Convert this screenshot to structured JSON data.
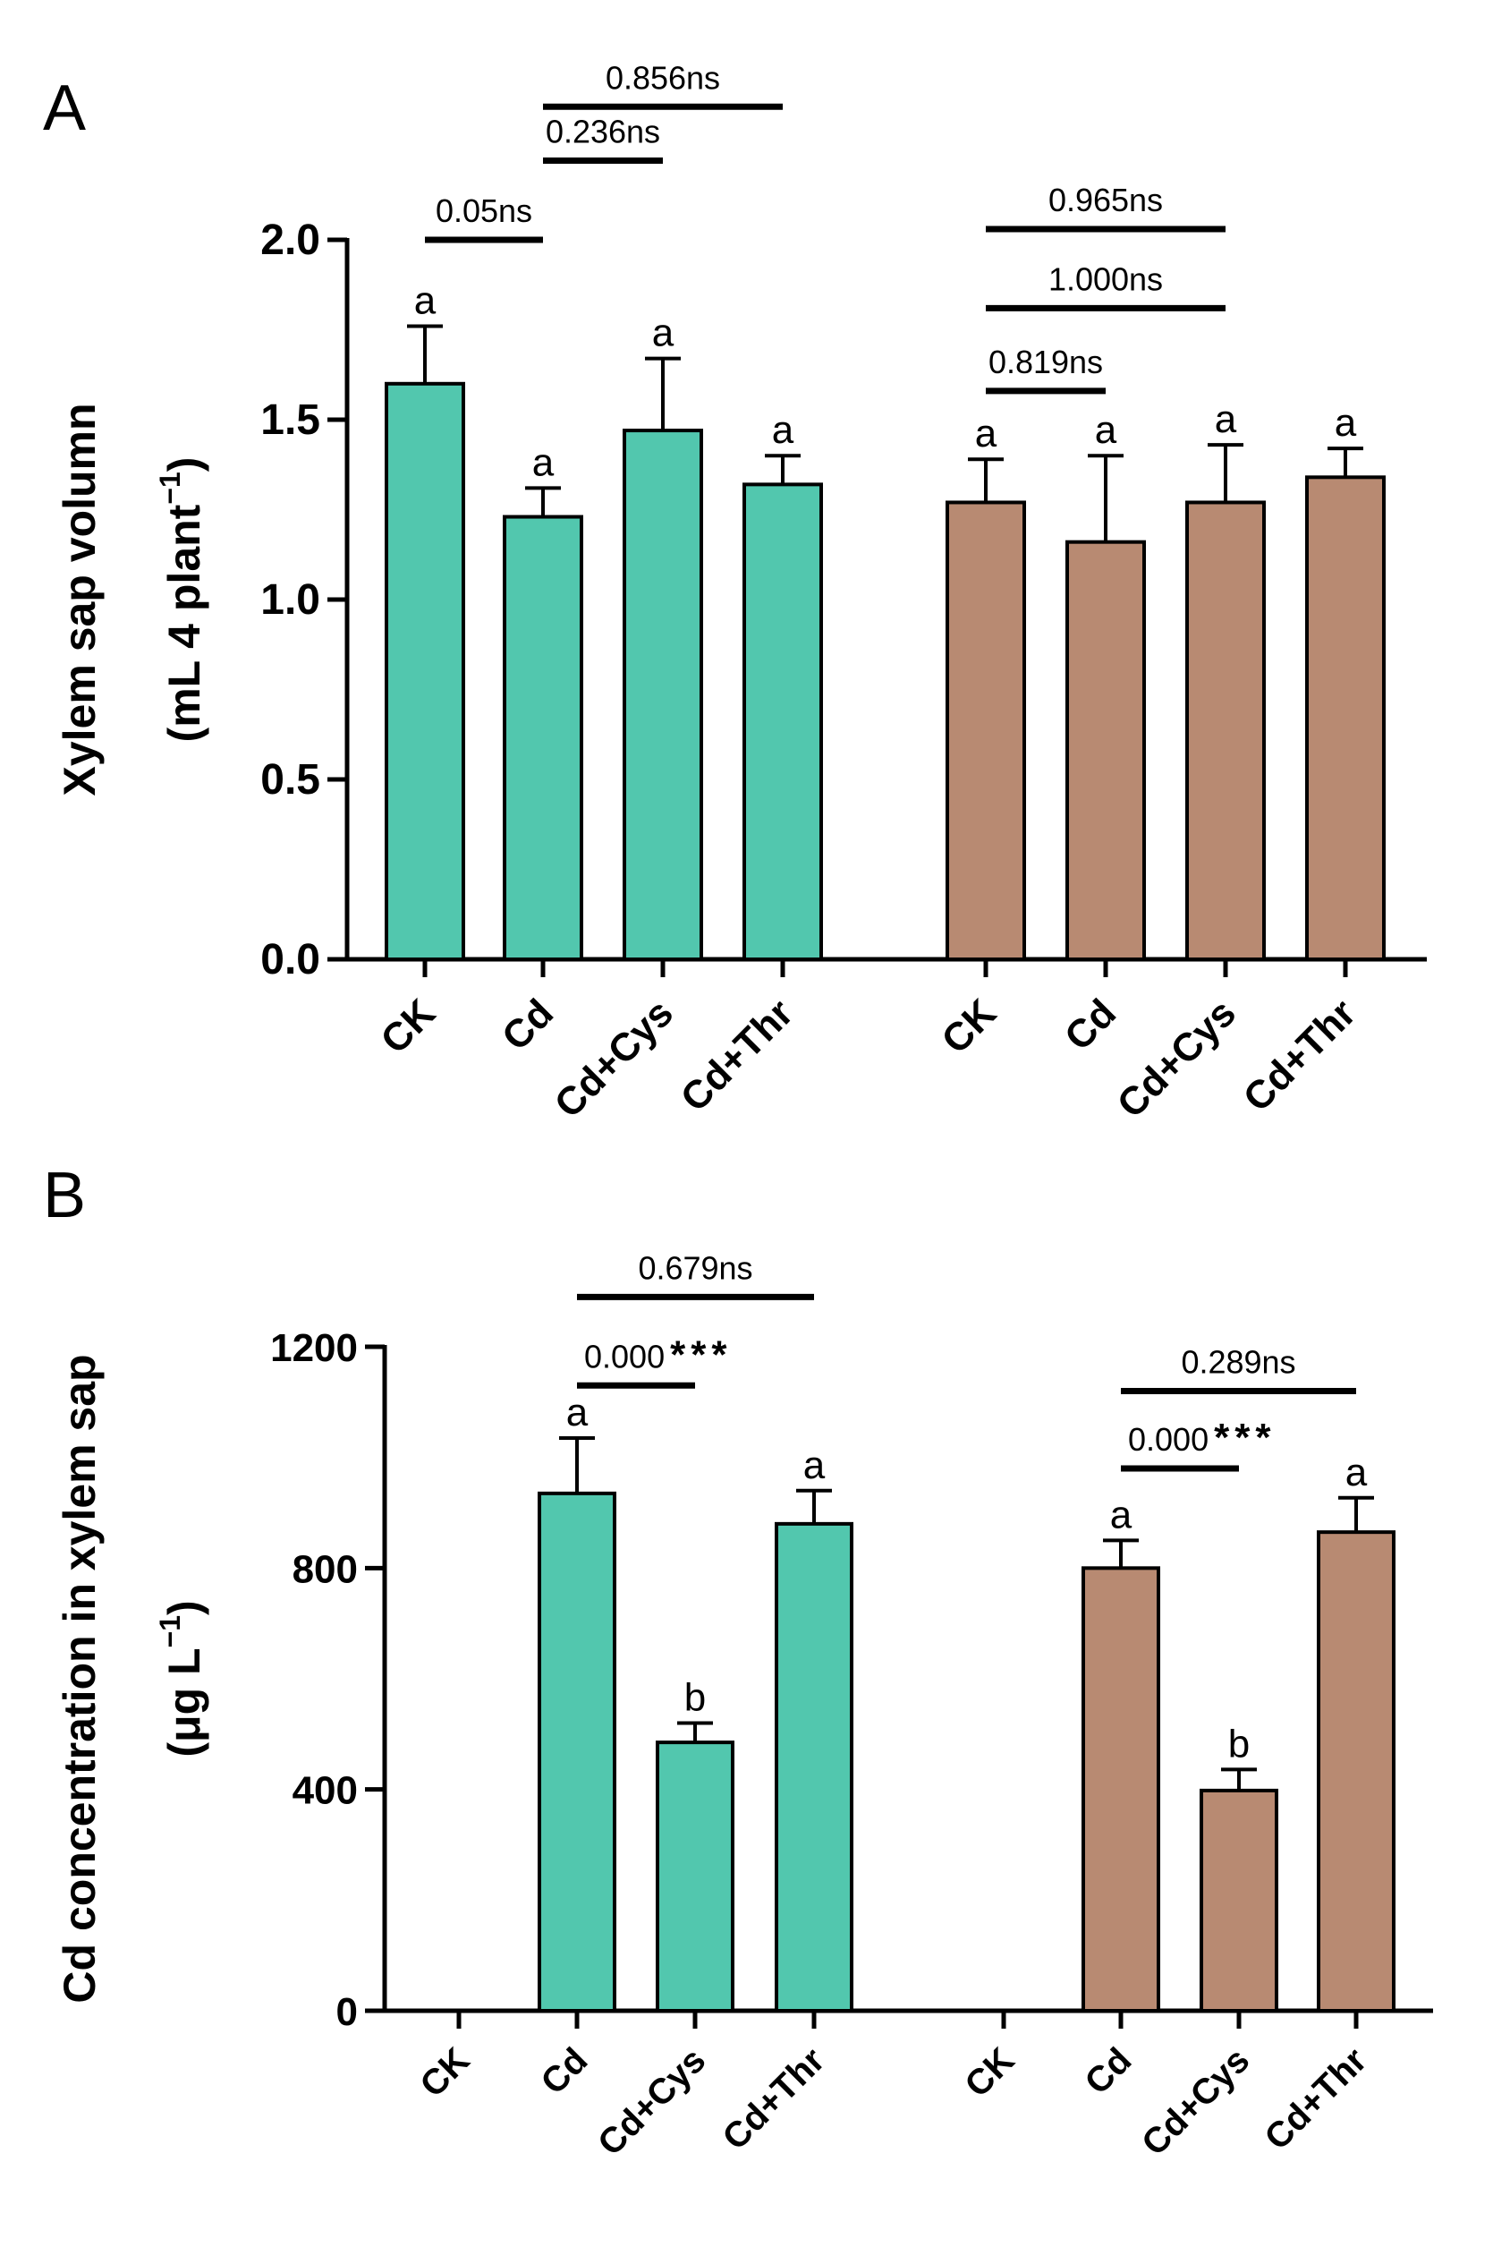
{
  "chart_data": [
    {
      "panel_label": "A",
      "type": "bar",
      "ylabel_line1": "Xylem sap volumn",
      "ylabel_line2_main": "(mL 4 plant",
      "ylabel_line2_sup": "−1",
      "ylabel_line2_end": ")",
      "ylim": [
        0,
        2.0
      ],
      "yticks": [
        0.0,
        0.5,
        1.0,
        1.5,
        2.0
      ],
      "ytick_labels": [
        "0.0",
        "0.5",
        "1.0",
        "1.5",
        "2.0"
      ],
      "colors": [
        "#52c7ae",
        "#b88a72"
      ],
      "groups": [
        {
          "categories": [
            "CK",
            "Cd",
            "Cd+Cys",
            "Cd+Thr"
          ],
          "values": [
            1.6,
            1.23,
            1.47,
            1.32
          ],
          "errors": [
            0.16,
            0.08,
            0.2,
            0.08
          ],
          "letters": [
            "a",
            "a",
            "a",
            "a"
          ],
          "comparisons": [
            {
              "from": 0,
              "to": 1,
              "level": 2.0,
              "label": "0.05ns"
            },
            {
              "from": 1,
              "to": 2,
              "level": 2.22,
              "label": "0.236ns"
            },
            {
              "from": 1,
              "to": 3,
              "level": 2.37,
              "label": "0.856ns"
            }
          ]
        },
        {
          "categories": [
            "CK",
            "Cd",
            "Cd+Cys",
            "Cd+Thr"
          ],
          "values": [
            1.27,
            1.16,
            1.27,
            1.34
          ],
          "errors": [
            0.12,
            0.24,
            0.16,
            0.08
          ],
          "letters": [
            "a",
            "a",
            "a",
            "a"
          ],
          "comparisons": [
            {
              "from": 0,
              "to": 1,
              "level": 1.58,
              "label": "0.819ns"
            },
            {
              "from": 0,
              "to": 2,
              "level": 1.81,
              "label": "1.000ns"
            },
            {
              "from": 0,
              "to": 2,
              "level": 2.03,
              "label": "0.965ns"
            }
          ]
        }
      ]
    },
    {
      "panel_label": "B",
      "type": "bar",
      "ylabel_line1": "Cd concentration in xylem sap",
      "ylabel_line2_main": "(μg L",
      "ylabel_line2_sup": "−1",
      "ylabel_line2_end": ")",
      "ylim": [
        0,
        1200
      ],
      "yticks": [
        0,
        400,
        800,
        1200
      ],
      "ytick_labels": [
        "0",
        "400",
        "800",
        "1200"
      ],
      "colors": [
        "#52c7ae",
        "#b88a72"
      ],
      "groups": [
        {
          "categories": [
            "CK",
            "Cd",
            "Cd+Cys",
            "Cd+Thr"
          ],
          "values": [
            0,
            935,
            485,
            880
          ],
          "errors": [
            0,
            100,
            35,
            60
          ],
          "letters": [
            "",
            "a",
            "b",
            "a"
          ],
          "comparisons": [
            {
              "from": 1,
              "to": 2,
              "level": 1130,
              "label": "0.000",
              "stars": "***"
            },
            {
              "from": 1,
              "to": 3,
              "level": 1290,
              "label": "0.679ns"
            }
          ]
        },
        {
          "categories": [
            "CK",
            "Cd",
            "Cd+Cys",
            "Cd+Thr"
          ],
          "values": [
            0,
            800,
            398,
            865
          ],
          "errors": [
            0,
            50,
            38,
            62
          ],
          "letters": [
            "",
            "a",
            "b",
            "a"
          ],
          "comparisons": [
            {
              "from": 1,
              "to": 2,
              "level": 980,
              "label": "0.000",
              "stars": "***"
            },
            {
              "from": 1,
              "to": 3,
              "level": 1120,
              "label": "0.289ns"
            }
          ]
        }
      ]
    }
  ]
}
